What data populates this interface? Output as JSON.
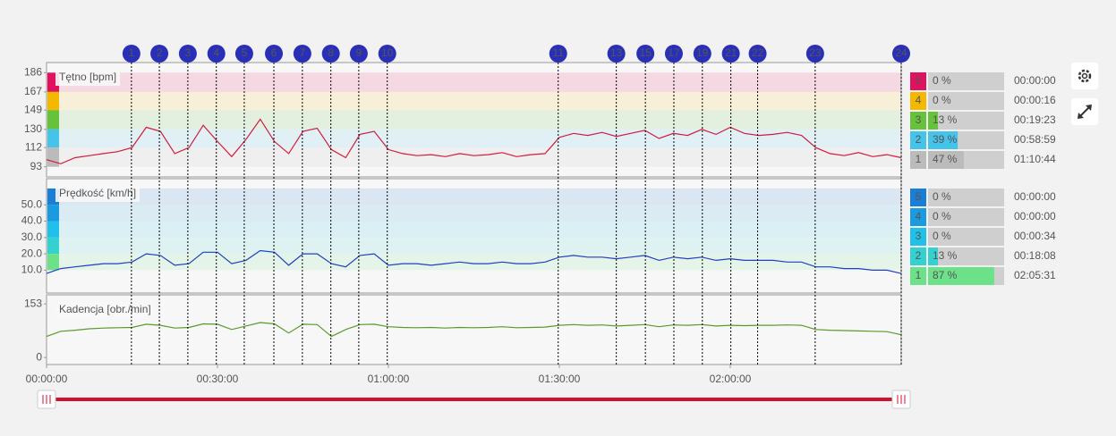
{
  "chart_data": [
    {
      "type": "line",
      "title": "Tętno [bpm]",
      "color": "#d01c3c",
      "x": [
        0,
        2.5,
        5,
        7.5,
        10,
        12.5,
        15,
        17.5,
        20,
        22.5,
        25,
        27.5,
        30,
        32.5,
        35,
        37.5,
        40,
        42.5,
        45,
        47.5,
        50,
        52.5,
        55,
        57.5,
        60,
        62.5,
        65,
        67.5,
        70,
        72.5,
        75,
        77.5,
        80,
        82.5,
        85,
        87.5,
        90,
        92.5,
        95,
        97.5,
        100,
        102.5,
        105,
        107.5,
        110,
        112.5,
        115,
        117.5,
        120,
        122.5,
        125,
        127.5,
        130,
        132.5,
        135,
        137.5,
        140,
        142.5,
        145,
        147.5,
        150
      ],
      "values": [
        100,
        96,
        102,
        104,
        106,
        108,
        112,
        132,
        128,
        106,
        112,
        134,
        118,
        103,
        120,
        140,
        118,
        106,
        128,
        131,
        110,
        102,
        125,
        128,
        110,
        106,
        104,
        105,
        103,
        106,
        104,
        105,
        107,
        103,
        105,
        106,
        122,
        126,
        124,
        127,
        123,
        126,
        129,
        121,
        126,
        124,
        130,
        125,
        132,
        126,
        124,
        125,
        127,
        124,
        112,
        106,
        104,
        107,
        103,
        105,
        102
      ],
      "xlim": [
        0,
        150
      ],
      "ylim": [
        83,
        196
      ],
      "yticks": [
        93,
        112,
        130,
        149,
        167,
        186
      ],
      "zones": [
        {
          "label": "5",
          "color": "#e0115f",
          "percent": 0,
          "percent_label": "0 %",
          "time": "00:00:00"
        },
        {
          "label": "4",
          "color": "#f5b800",
          "percent": 0,
          "percent_label": "0 %",
          "time": "00:00:16"
        },
        {
          "label": "3",
          "color": "#66c23a",
          "percent": 13,
          "percent_label": "13 %",
          "time": "00:19:23"
        },
        {
          "label": "2",
          "color": "#45c3e8",
          "percent": 39,
          "percent_label": "39 %",
          "time": "00:58:59"
        },
        {
          "label": "1",
          "color": "#bbbbbb",
          "percent": 47,
          "percent_label": "47 %",
          "time": "01:10:44"
        }
      ]
    },
    {
      "type": "line",
      "title": "Prędkość [km/h]",
      "color": "#1f3fc4",
      "x": [
        0,
        2.5,
        5,
        7.5,
        10,
        12.5,
        15,
        17.5,
        20,
        22.5,
        25,
        27.5,
        30,
        32.5,
        35,
        37.5,
        40,
        42.5,
        45,
        47.5,
        50,
        52.5,
        55,
        57.5,
        60,
        62.5,
        65,
        67.5,
        70,
        72.5,
        75,
        77.5,
        80,
        82.5,
        85,
        87.5,
        90,
        92.5,
        95,
        97.5,
        100,
        102.5,
        105,
        107.5,
        110,
        112.5,
        115,
        117.5,
        120,
        122.5,
        125,
        127.5,
        130,
        132.5,
        135,
        137.5,
        140,
        142.5,
        145,
        147.5,
        150
      ],
      "values": [
        8,
        11,
        12,
        13,
        14,
        14,
        15,
        20,
        19,
        13,
        14,
        21,
        21,
        14,
        16,
        22,
        21,
        13,
        20,
        20,
        14,
        12,
        19,
        20,
        13,
        14,
        14,
        13,
        14,
        15,
        14,
        14,
        15,
        14,
        14,
        15,
        18,
        19,
        18,
        18,
        17,
        18,
        19,
        16,
        18,
        17,
        18,
        16,
        17,
        16,
        16,
        16,
        15,
        15,
        12,
        12,
        11,
        11,
        10,
        10,
        8
      ],
      "xlim": [
        0,
        150
      ],
      "ylim": [
        -4,
        66
      ],
      "yticks": [
        {
          "value": 10,
          "label": "10.0"
        },
        {
          "value": 20,
          "label": "20.0"
        },
        {
          "value": 30,
          "label": "30.0"
        },
        {
          "value": 40,
          "label": "40.0"
        },
        {
          "value": 50,
          "label": "50.0"
        }
      ],
      "zones": [
        {
          "label": "5",
          "color": "#1a7fd4",
          "percent": 0,
          "percent_label": "0 %",
          "time": "00:00:00"
        },
        {
          "label": "4",
          "color": "#1a9be0",
          "percent": 0,
          "percent_label": "0 %",
          "time": "00:00:00"
        },
        {
          "label": "3",
          "color": "#20c0e8",
          "percent": 0,
          "percent_label": "0 %",
          "time": "00:00:34"
        },
        {
          "label": "2",
          "color": "#35d0d0",
          "percent": 13,
          "percent_label": "13 %",
          "time": "00:18:08"
        },
        {
          "label": "1",
          "color": "#6de08a",
          "percent": 87,
          "percent_label": "87 %",
          "time": "02:05:31"
        }
      ]
    },
    {
      "type": "line",
      "title": "Kadencja [obr./min]",
      "color": "#5a9a2a",
      "x": [
        0,
        2.5,
        5,
        7.5,
        10,
        12.5,
        15,
        17.5,
        20,
        22.5,
        25,
        27.5,
        30,
        32.5,
        35,
        37.5,
        40,
        42.5,
        45,
        47.5,
        50,
        52.5,
        55,
        57.5,
        60,
        62.5,
        65,
        67.5,
        70,
        72.5,
        75,
        77.5,
        80,
        82.5,
        85,
        87.5,
        90,
        92.5,
        95,
        97.5,
        100,
        102.5,
        105,
        107.5,
        110,
        112.5,
        115,
        117.5,
        120,
        122.5,
        125,
        127.5,
        130,
        132.5,
        135,
        137.5,
        140,
        142.5,
        145,
        147.5,
        150
      ],
      "values": [
        60,
        75,
        78,
        82,
        84,
        85,
        86,
        95,
        92,
        84,
        86,
        96,
        95,
        80,
        90,
        100,
        96,
        70,
        95,
        94,
        60,
        80,
        94,
        95,
        88,
        86,
        85,
        86,
        84,
        86,
        85,
        86,
        88,
        85,
        86,
        87,
        92,
        94,
        92,
        93,
        90,
        92,
        94,
        88,
        93,
        92,
        94,
        90,
        92,
        91,
        92,
        92,
        93,
        92,
        80,
        78,
        77,
        76,
        75,
        74,
        65
      ],
      "xlim": [
        0,
        150
      ],
      "ylim": [
        -20,
        179
      ],
      "yticks": [
        0,
        153
      ],
      "xticks": [
        {
          "value": 0,
          "label": "00:00:00"
        },
        {
          "value": 30,
          "label": "00:30:00"
        },
        {
          "value": 60,
          "label": "01:00:00"
        },
        {
          "value": 90,
          "label": "01:30:00"
        },
        {
          "value": 120,
          "label": "02:00:00"
        }
      ]
    }
  ],
  "laps": {
    "labels": [
      "1",
      "2",
      "3",
      "4",
      "5",
      "6",
      "7",
      "8",
      "9",
      "10",
      "11",
      "13",
      "15",
      "17",
      "19",
      "21",
      "22",
      "23",
      "24"
    ],
    "x": [
      14.9,
      19.8,
      24.8,
      29.8,
      34.7,
      39.9,
      44.9,
      49.9,
      54.8,
      59.8,
      89.8,
      100.0,
      105.1,
      110.1,
      115.1,
      120.1,
      124.8,
      134.9,
      150.0
    ]
  }
}
